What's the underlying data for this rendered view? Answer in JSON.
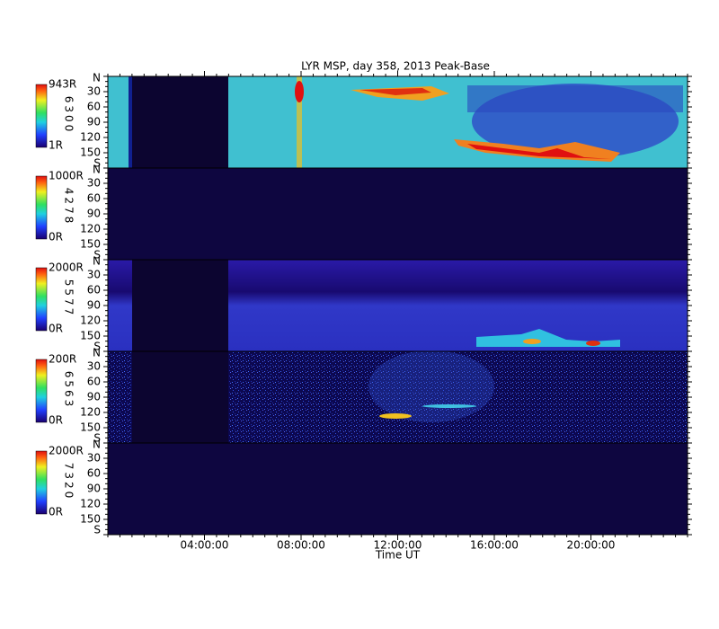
{
  "chart_data": {
    "type": "keogram",
    "title": "LYR MSP, day 358, 2013 Peak-Base",
    "xlabel": "Time UT",
    "xlim": [
      0,
      24
    ],
    "xticks": [
      {
        "value": 4,
        "label": "04:00:00"
      },
      {
        "value": 8,
        "label": "08:00:00"
      },
      {
        "value": 12,
        "label": "12:00:00"
      },
      {
        "value": 16,
        "label": "16:00:00"
      },
      {
        "value": 20,
        "label": "20:00:00"
      }
    ],
    "panels": [
      {
        "wavelength": "6300",
        "colorbar_max": "943R",
        "colorbar_min": "1R",
        "ylim": [
          0,
          180
        ],
        "yticks": [
          {
            "value": 0,
            "label": "N"
          },
          30,
          60,
          90,
          120,
          150,
          {
            "value": 180,
            "label": "S"
          }
        ]
      },
      {
        "wavelength": "4278",
        "colorbar_max": "1000R",
        "colorbar_min": "0R",
        "ylim": [
          0,
          180
        ],
        "yticks": [
          {
            "value": 0,
            "label": "N"
          },
          30,
          60,
          90,
          120,
          150,
          {
            "value": 180,
            "label": "S"
          }
        ]
      },
      {
        "wavelength": "5577",
        "colorbar_max": "2000R",
        "colorbar_min": "0R",
        "ylim": [
          0,
          180
        ],
        "yticks": [
          {
            "value": 0,
            "label": "N"
          },
          30,
          60,
          90,
          120,
          150,
          {
            "value": 180,
            "label": "S"
          }
        ]
      },
      {
        "wavelength": "6563",
        "colorbar_max": "200R",
        "colorbar_min": "0R",
        "ylim": [
          0,
          180
        ],
        "yticks": [
          {
            "value": 0,
            "label": "N"
          },
          30,
          60,
          90,
          120,
          150,
          {
            "value": 180,
            "label": "S"
          }
        ]
      },
      {
        "wavelength": "7320",
        "colorbar_max": "2000R",
        "colorbar_min": "0R",
        "ylim": [
          0,
          180
        ],
        "yticks": [
          {
            "value": 0,
            "label": "N"
          },
          30,
          60,
          90,
          120,
          150,
          {
            "value": 180,
            "label": "S"
          }
        ]
      }
    ]
  }
}
